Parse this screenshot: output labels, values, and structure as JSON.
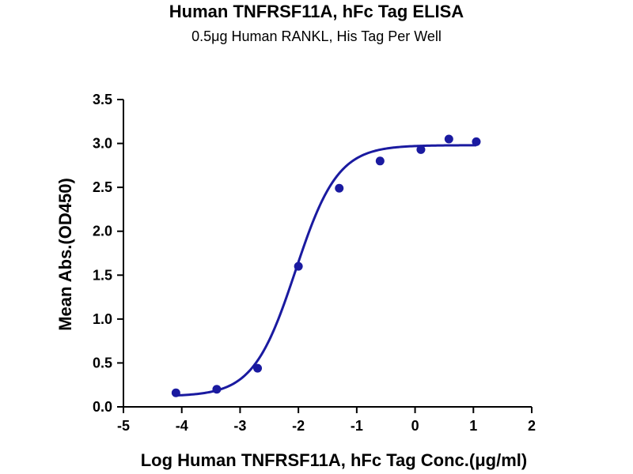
{
  "chart_data": {
    "type": "scatter",
    "title": "Human TNFRSF11A, hFc Tag ELISA",
    "subtitle": "0.5μg Human RANKL, His Tag Per Well",
    "xlabel": "Log Human TNFRSF11A, hFc Tag Conc.(μg/ml)",
    "ylabel": "Mean Abs.(OD450)",
    "xlim": [
      -5,
      2
    ],
    "ylim": [
      0,
      3.5
    ],
    "x_ticks": [
      "-5",
      "-4",
      "-3",
      "-2",
      "-1",
      "0",
      "1",
      "2"
    ],
    "y_ticks": [
      "0.0",
      "0.5",
      "1.0",
      "1.5",
      "2.0",
      "2.5",
      "3.0",
      "3.5"
    ],
    "grid": false,
    "colors": {
      "series": "#1a1aa0",
      "axis": "#000000"
    },
    "series": [
      {
        "x": [
          -4.1,
          -3.4,
          -2.7,
          -2.0,
          -1.3,
          -0.6,
          0.1,
          0.58,
          1.05
        ],
        "y": [
          0.16,
          0.2,
          0.44,
          1.6,
          2.49,
          2.8,
          2.93,
          3.05,
          3.02
        ],
        "fit": "4PL sigmoid",
        "fit_params": {
          "bottom": 0.12,
          "top": 2.98,
          "logEC50": -2.05,
          "hill": 1.2
        }
      }
    ]
  }
}
